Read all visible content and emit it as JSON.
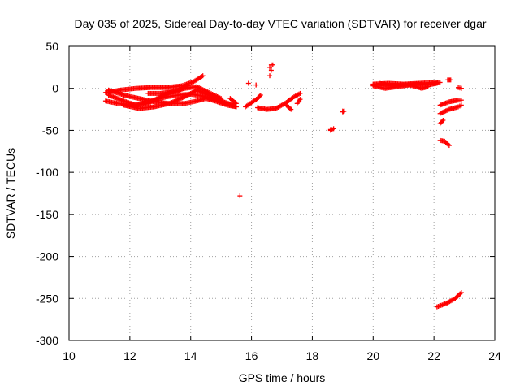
{
  "chart_data": {
    "type": "scatter",
    "title": "Day 035 of 2025, Sidereal Day-to-day VTEC variation (SDTVAR) for receiver dgar",
    "xlabel": "GPS time / hours",
    "ylabel": "SDTVAR / TECUs",
    "xlim": [
      10,
      24
    ],
    "ylim": [
      -300,
      50
    ],
    "xticks": [
      "10",
      "12",
      "14",
      "16",
      "18",
      "20",
      "22",
      "24"
    ],
    "yticks": [
      "50",
      "0",
      "-50",
      "-100",
      "-150",
      "-200",
      "-250",
      "-300"
    ],
    "grid": true,
    "marker": "plus",
    "color": "#ff0000",
    "segments": [
      {
        "name": "arc1",
        "x": [
          11.2,
          11.7,
          12.2,
          12.7,
          13.2,
          13.7,
          14.1,
          14.4
        ],
        "y": [
          -5,
          -2,
          0,
          1,
          1,
          3,
          8,
          15
        ]
      },
      {
        "name": "arc2",
        "x": [
          11.2,
          11.6,
          12.0,
          12.4,
          12.8,
          13.2,
          13.6,
          14.0,
          14.4,
          14.8,
          15.2,
          15.5
        ],
        "y": [
          -15,
          -18,
          -20,
          -18,
          -14,
          -10,
          -8,
          -7,
          -9,
          -13,
          -18,
          -22
        ]
      },
      {
        "name": "arc3",
        "x": [
          11.3,
          11.8,
          12.2,
          12.6,
          13.0,
          13.3,
          13.6,
          13.9
        ],
        "y": [
          -8,
          -15,
          -20,
          -18,
          -10,
          -5,
          -3,
          3
        ]
      },
      {
        "name": "arc4",
        "x": [
          11.3,
          11.8,
          12.3,
          12.8,
          13.3,
          13.8,
          14.2,
          14.5,
          14.8,
          15.2,
          15.5
        ],
        "y": [
          -2,
          -8,
          -12,
          -16,
          -18,
          -18,
          -15,
          -12,
          -15,
          -20,
          -22
        ]
      },
      {
        "name": "arc5",
        "x": [
          11.8,
          12.3,
          12.8,
          13.3,
          13.8,
          14.2,
          14.6,
          15.0,
          15.4
        ],
        "y": [
          -20,
          -24,
          -22,
          -18,
          -10,
          -2,
          -8,
          -15,
          -20
        ]
      },
      {
        "name": "arc6",
        "x": [
          12.6,
          13.0,
          13.4,
          13.8,
          14.2,
          14.6,
          15.0
        ],
        "y": [
          -6,
          -6,
          -4,
          0,
          2,
          -5,
          -12
        ]
      },
      {
        "name": "arc7",
        "x": [
          15.3,
          15.5
        ],
        "y": [
          -12,
          -18
        ]
      },
      {
        "name": "arc8",
        "x": [
          15.8,
          16.0,
          16.2,
          16.3
        ],
        "y": [
          -22,
          -17,
          -12,
          -8
        ]
      },
      {
        "name": "arc9",
        "x": [
          16.2,
          16.5,
          16.8,
          17.1,
          17.4,
          17.6
        ],
        "y": [
          -23,
          -25,
          -24,
          -18,
          -10,
          -6
        ]
      },
      {
        "name": "arc10",
        "x": [
          17.15,
          17.3
        ],
        "y": [
          -20,
          -25
        ]
      },
      {
        "name": "arc11",
        "x": [
          17.5,
          17.6
        ],
        "y": [
          -18,
          -13
        ]
      },
      {
        "name": "arc12",
        "x": [
          16.6,
          16.7
        ],
        "y": [
          15,
          28
        ]
      },
      {
        "name": "arc13",
        "x": [
          18.6,
          18.7
        ],
        "y": [
          -50,
          -48
        ]
      },
      {
        "name": "arc14",
        "x": [
          19.0,
          19.05
        ],
        "y": [
          -28,
          -27
        ]
      },
      {
        "name": "arc15",
        "x": [
          20.0,
          20.5,
          21.0,
          21.5,
          22.0,
          22.2
        ],
        "y": [
          5,
          6,
          5,
          6,
          7,
          7
        ]
      },
      {
        "name": "arc16",
        "x": [
          20.0,
          20.4,
          20.8,
          21.2,
          21.6,
          21.8
        ],
        "y": [
          3,
          0,
          2,
          4,
          0,
          2
        ]
      },
      {
        "name": "arc17",
        "x": [
          20.2,
          20.6,
          21.0,
          21.4,
          21.8,
          22.1
        ],
        "y": [
          6,
          3,
          4,
          5,
          4,
          6
        ]
      },
      {
        "name": "arc18",
        "x": [
          22.2,
          22.5,
          22.8,
          22.9
        ],
        "y": [
          -20,
          -16,
          -14,
          -14
        ]
      },
      {
        "name": "arc19",
        "x": [
          22.2,
          22.5,
          22.8,
          22.9
        ],
        "y": [
          -30,
          -25,
          -22,
          -20
        ]
      },
      {
        "name": "arc20",
        "x": [
          22.2,
          22.3
        ],
        "y": [
          -42,
          -38
        ]
      },
      {
        "name": "arc21",
        "x": [
          22.2,
          22.35,
          22.5
        ],
        "y": [
          -62,
          -63,
          -68
        ]
      },
      {
        "name": "arc22",
        "x": [
          22.1,
          22.4,
          22.7,
          22.9
        ],
        "y": [
          -260,
          -256,
          -250,
          -243
        ]
      },
      {
        "name": "arc23",
        "x": [
          22.45,
          22.55
        ],
        "y": [
          10,
          10
        ]
      },
      {
        "name": "arc24",
        "x": [
          22.8,
          22.9
        ],
        "y": [
          1,
          0
        ]
      }
    ],
    "points": [
      {
        "x": 15.62,
        "y": -128
      },
      {
        "x": 15.9,
        "y": 6
      },
      {
        "x": 16.15,
        "y": 4
      },
      {
        "x": 16.6,
        "y": 25
      },
      {
        "x": 16.65,
        "y": 28
      },
      {
        "x": 18.6,
        "y": -49
      },
      {
        "x": 19.0,
        "y": -27
      },
      {
        "x": 22.9,
        "y": 0
      }
    ]
  }
}
